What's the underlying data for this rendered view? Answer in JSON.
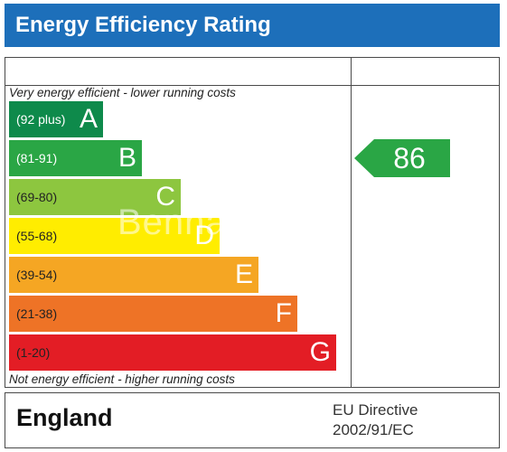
{
  "title": "Energy Efficiency Rating",
  "top_note": "Very energy efficient - lower running costs",
  "bottom_note": "Not energy efficient - higher running costs",
  "watermark": "Benna",
  "footer": {
    "country": "England",
    "directive_line1": "EU Directive",
    "directive_line2": "2002/91/EC"
  },
  "chart_data": {
    "type": "bar",
    "bands": [
      {
        "range": "(92 plus)",
        "letter": "A",
        "color": "#0e8a4b",
        "light_text": true
      },
      {
        "range": "(81-91)",
        "letter": "B",
        "color": "#2aa645",
        "light_text": true
      },
      {
        "range": "(69-80)",
        "letter": "C",
        "color": "#8dc63f",
        "light_text": false
      },
      {
        "range": "(55-68)",
        "letter": "D",
        "color": "#ffed00",
        "light_text": false
      },
      {
        "range": "(39-54)",
        "letter": "E",
        "color": "#f5a623",
        "light_text": false
      },
      {
        "range": "(21-38)",
        "letter": "F",
        "color": "#ee7326",
        "light_text": false
      },
      {
        "range": "(1-20)",
        "letter": "G",
        "color": "#e31d25",
        "light_text": false
      }
    ],
    "current_rating": {
      "value": 86,
      "band": "B",
      "color": "#2aa645"
    }
  }
}
